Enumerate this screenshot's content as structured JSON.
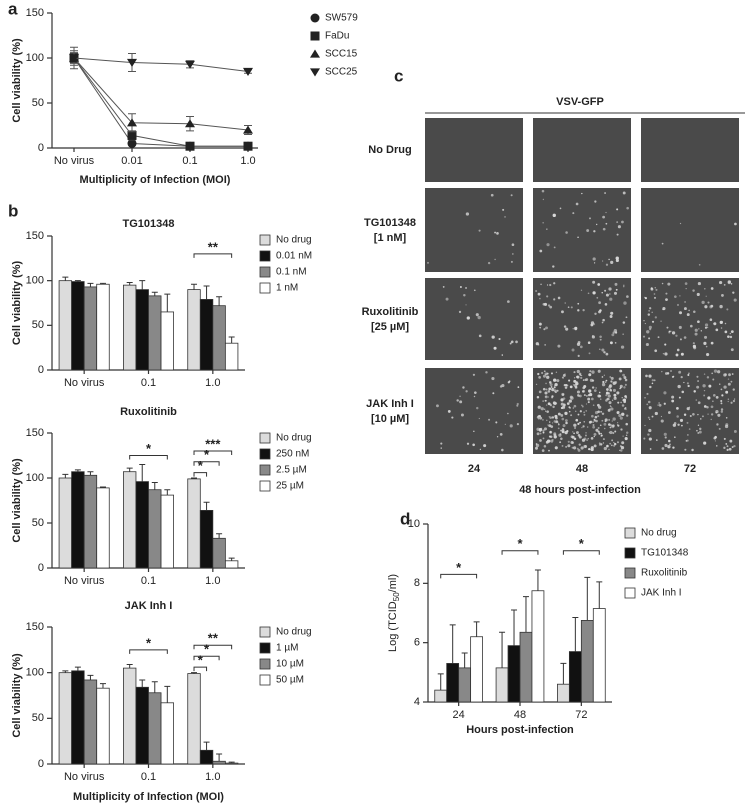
{
  "panel_labels": [
    "a",
    "b",
    "c",
    "d"
  ],
  "chart_data": [
    {
      "type": "line",
      "xlabel": "Multiplicity of Infection (MOI)",
      "ylabel": "Cell viability (%)",
      "categories": [
        "No virus",
        "0.01",
        "0.1",
        "1.0"
      ],
      "ylim": [
        0,
        150
      ],
      "yticks": [
        0,
        50,
        100,
        150
      ],
      "series": [
        {
          "name": "SW579",
          "marker": "circle",
          "color": "#222",
          "values": [
            100,
            5,
            2,
            2
          ],
          "errors": [
            5,
            2,
            1,
            1
          ]
        },
        {
          "name": "FaDu",
          "marker": "square",
          "color": "#222",
          "values": [
            100,
            14,
            2,
            2
          ],
          "errors": [
            8,
            5,
            1,
            1
          ]
        },
        {
          "name": "SCC15",
          "marker": "triangle",
          "color": "#222",
          "values": [
            100,
            28,
            27,
            20
          ],
          "errors": [
            6,
            10,
            8,
            5
          ]
        },
        {
          "name": "SCC25",
          "marker": "triangle-down",
          "color": "#222",
          "values": [
            100,
            95,
            93,
            85
          ],
          "errors": [
            12,
            10,
            4,
            2
          ]
        }
      ]
    },
    {
      "type": "bar",
      "title": "TG101348",
      "ylabel": "Cell viability (%)",
      "categories": [
        "No virus",
        "0.1",
        "1.0"
      ],
      "ylim": [
        0,
        150
      ],
      "yticks": [
        0,
        50,
        100,
        150
      ],
      "series": [
        {
          "name": "No drug",
          "color": "#dcdcdc",
          "values": [
            100,
            95,
            90
          ],
          "errors": [
            4,
            3,
            6
          ]
        },
        {
          "name": "0.01 nM",
          "color": "#111111",
          "values": [
            99,
            90,
            79
          ],
          "errors": [
            1,
            10,
            15
          ]
        },
        {
          "name": "0.1 nM",
          "color": "#888888",
          "values": [
            93,
            83,
            72
          ],
          "errors": [
            4,
            4,
            10
          ]
        },
        {
          "name": "1 nM",
          "color": "#ffffff",
          "values": [
            96,
            65,
            30
          ],
          "errors": [
            1,
            20,
            7
          ]
        }
      ],
      "significance": [
        "**"
      ]
    },
    {
      "type": "bar",
      "title": "Ruxolitinib",
      "ylabel": "Cell viability (%)",
      "categories": [
        "No virus",
        "0.1",
        "1.0"
      ],
      "ylim": [
        0,
        150
      ],
      "yticks": [
        0,
        50,
        100,
        150
      ],
      "series": [
        {
          "name": "No drug",
          "color": "#dcdcdc",
          "values": [
            100,
            107,
            99
          ],
          "errors": [
            4,
            4,
            1
          ]
        },
        {
          "name": "250 nM",
          "color": "#111111",
          "values": [
            107,
            96,
            64
          ],
          "errors": [
            2,
            19,
            9
          ]
        },
        {
          "name": "2.5 µM",
          "color": "#888888",
          "values": [
            103,
            87,
            33
          ],
          "errors": [
            4,
            8,
            5
          ]
        },
        {
          "name": "25 µM",
          "color": "#ffffff",
          "values": [
            89,
            81,
            8
          ],
          "errors": [
            1,
            6,
            3
          ]
        }
      ],
      "significance": [
        "*",
        "***",
        "*",
        "*"
      ]
    },
    {
      "type": "bar",
      "title": "JAK Inh I",
      "ylabel": "Cell viability (%)",
      "xlabel": "Multiplicity of Infection (MOI)",
      "categories": [
        "No virus",
        "0.1",
        "1.0"
      ],
      "ylim": [
        0,
        150
      ],
      "yticks": [
        0,
        50,
        100,
        150
      ],
      "series": [
        {
          "name": "No drug",
          "color": "#dcdcdc",
          "values": [
            100,
            105,
            99
          ],
          "errors": [
            2,
            4,
            1
          ]
        },
        {
          "name": "1 µM",
          "color": "#111111",
          "values": [
            102,
            84,
            15
          ],
          "errors": [
            4,
            8,
            9
          ]
        },
        {
          "name": "10 µM",
          "color": "#888888",
          "values": [
            92,
            78,
            3
          ],
          "errors": [
            5,
            12,
            8
          ]
        },
        {
          "name": "50 µM",
          "color": "#ffffff",
          "values": [
            83,
            67,
            1
          ],
          "errors": [
            5,
            18,
            1
          ]
        }
      ],
      "significance": [
        "*",
        "**",
        "*",
        "*"
      ]
    },
    {
      "type": "bar",
      "ylabel": {
        "main": "Log (TCID",
        "sub": "50",
        "tail": "/ml)"
      },
      "xlabel": "Hours post-infection",
      "categories": [
        "24",
        "48",
        "72"
      ],
      "ylim": [
        4,
        10
      ],
      "yticks": [
        4,
        6,
        8,
        10
      ],
      "series": [
        {
          "name": "No drug",
          "color": "#dcdcdc",
          "values": [
            4.4,
            5.15,
            4.6
          ],
          "errors": [
            0.55,
            1.2,
            0.7
          ]
        },
        {
          "name": "TG101348",
          "color": "#111111",
          "values": [
            5.3,
            5.9,
            5.7
          ],
          "errors": [
            1.3,
            1.2,
            1.15
          ]
        },
        {
          "name": "Ruxolitinib",
          "color": "#888888",
          "values": [
            5.15,
            6.35,
            6.75
          ],
          "errors": [
            0.5,
            1.2,
            1.45
          ]
        },
        {
          "name": "JAK Inh I",
          "color": "#ffffff",
          "values": [
            6.2,
            7.75,
            7.15
          ],
          "errors": [
            0.5,
            0.7,
            0.9
          ]
        }
      ],
      "significance": [
        "*",
        "*",
        "*"
      ]
    }
  ],
  "panel_c": {
    "header": "VSV-GFP",
    "rows": [
      [
        "No Drug"
      ],
      [
        "TG101348",
        "[1 nM]"
      ],
      [
        "Ruxolitinib",
        "[25 µM]"
      ],
      [
        "JAK Inh I",
        "[10 µM]"
      ]
    ],
    "columns": [
      "24",
      "48",
      "72"
    ],
    "caption": "48 hours post-infection"
  }
}
